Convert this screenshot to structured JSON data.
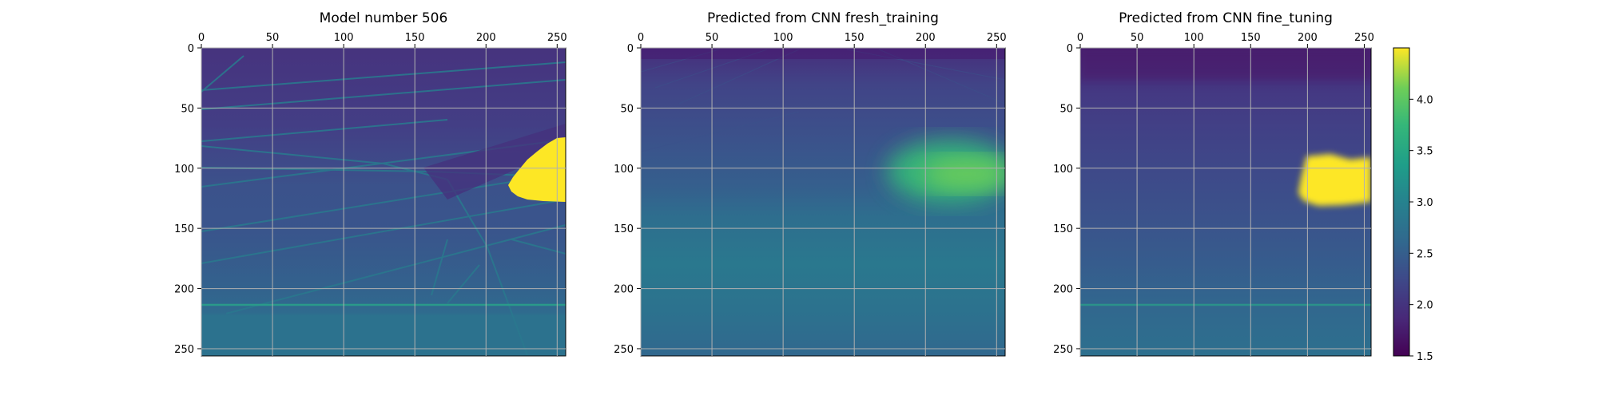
{
  "chart_data": [
    {
      "type": "heatmap",
      "title": "Model number 506",
      "x_ticks": [
        0,
        50,
        100,
        150,
        200,
        250
      ],
      "y_ticks": [
        0,
        50,
        100,
        150,
        200,
        250
      ],
      "xlim": [
        0,
        256
      ],
      "ylim": [
        256,
        0
      ],
      "x_axis_position": "top",
      "grid": true,
      "colormap": "viridis",
      "value_range": [
        1.5,
        4.5
      ],
      "background_level": 1.9,
      "bright_region": {
        "x_range": [
          213,
          256
        ],
        "y_range": [
          75,
          128
        ],
        "value": 4.5
      },
      "bottom_band": {
        "y_range": [
          222,
          256
        ],
        "value": 2.5
      }
    },
    {
      "type": "heatmap",
      "title": "Predicted from CNN fresh_training",
      "x_ticks": [
        0,
        50,
        100,
        150,
        200,
        250
      ],
      "y_ticks": [
        0,
        50,
        100,
        150,
        200,
        250
      ],
      "xlim": [
        0,
        256
      ],
      "ylim": [
        256,
        0
      ],
      "x_axis_position": "top",
      "grid": true,
      "colormap": "viridis",
      "value_range": [
        1.5,
        4.5
      ],
      "background_level": 2.3,
      "bright_region": {
        "x_range": [
          180,
          256
        ],
        "y_range": [
          90,
          140
        ],
        "value": 3.3
      }
    },
    {
      "type": "heatmap",
      "title": "Predicted from CNN fine_tuning",
      "x_ticks": [
        0,
        50,
        100,
        150,
        200,
        250
      ],
      "y_ticks": [
        0,
        50,
        100,
        150,
        200,
        250
      ],
      "xlim": [
        0,
        256
      ],
      "ylim": [
        256,
        0
      ],
      "x_axis_position": "top",
      "grid": true,
      "colormap": "viridis",
      "value_range": [
        1.5,
        4.5
      ],
      "background_level": 2.0,
      "bright_region": {
        "x_range": [
          192,
          256
        ],
        "y_range": [
          88,
          130
        ],
        "value": 4.4
      }
    }
  ],
  "colorbar": {
    "ticks": [
      "1.5",
      "2.0",
      "2.5",
      "3.0",
      "3.5",
      "4.0"
    ],
    "tick_values": [
      1.5,
      2.0,
      2.5,
      3.0,
      3.5,
      4.0
    ],
    "range": [
      1.5,
      4.5
    ],
    "colormap": "viridis"
  },
  "colors": {
    "low": "#440154",
    "mid": "#21918c",
    "high": "#fde725"
  }
}
